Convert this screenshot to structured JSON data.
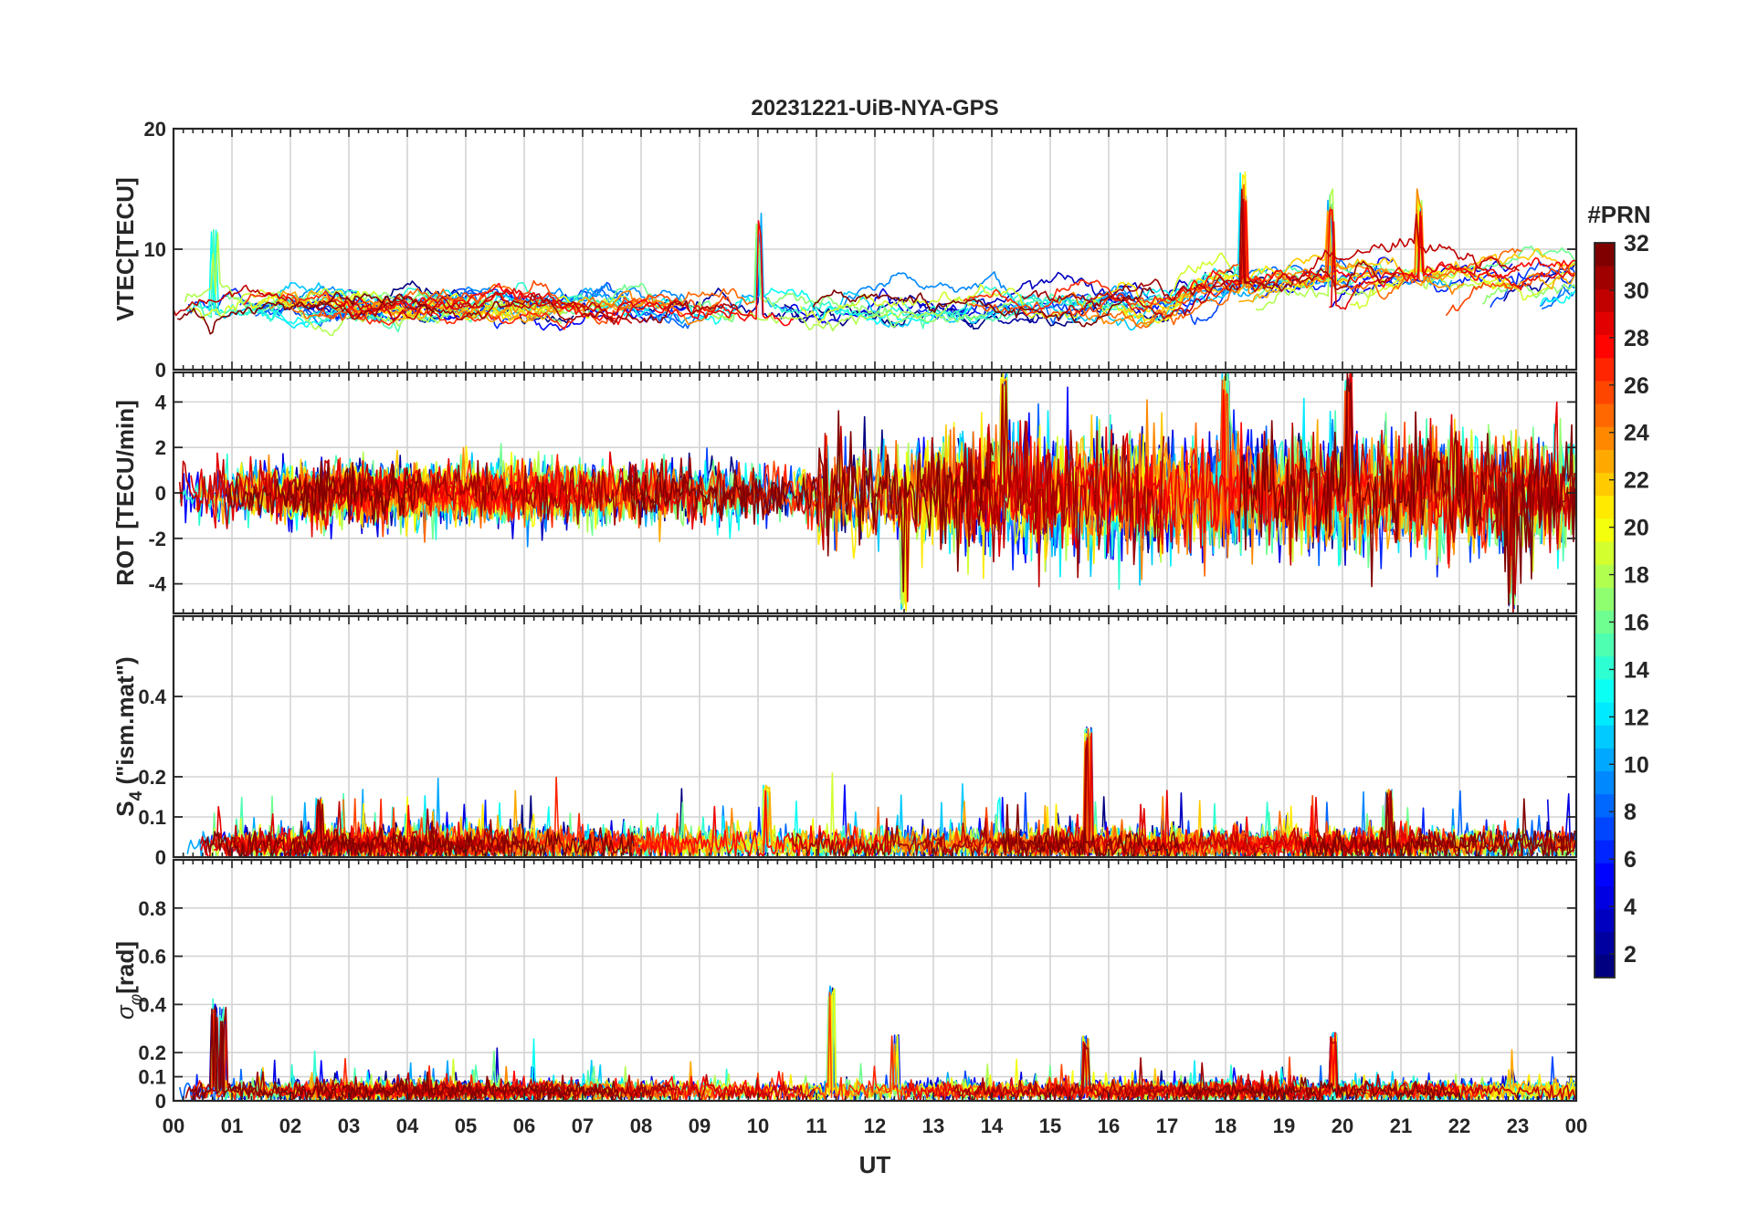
{
  "chart_data": {
    "type": "line",
    "title": "20231221-UiB-NYA-GPS",
    "xlabel": "UT",
    "x_range_hours": [
      0,
      24
    ],
    "x_tick_labels": [
      "00",
      "01",
      "02",
      "03",
      "04",
      "05",
      "06",
      "07",
      "08",
      "09",
      "10",
      "11",
      "12",
      "13",
      "14",
      "15",
      "16",
      "17",
      "18",
      "19",
      "20",
      "21",
      "22",
      "23",
      "00"
    ],
    "colorbar": {
      "label": "#PRN",
      "range": [
        1,
        32
      ],
      "tick_labels": [
        "2",
        "4",
        "6",
        "8",
        "10",
        "12",
        "14",
        "16",
        "18",
        "20",
        "22",
        "24",
        "26",
        "28",
        "30",
        "32"
      ],
      "colormap": "jet"
    },
    "panels": [
      {
        "id": "vtec",
        "ylabel": "VTEC[TECU]",
        "ylim": [
          0,
          20
        ],
        "yticks": [
          0,
          10,
          20
        ],
        "ytick_labels": [
          "0",
          "10",
          "20"
        ],
        "baseline": 5.2,
        "noise": 1.2,
        "typical_range": [
          2,
          16
        ],
        "features": [
          {
            "hour": 0.7,
            "value": 12
          },
          {
            "hour": 10.0,
            "value": 13
          },
          {
            "hour": 18.3,
            "value": 16.5
          },
          {
            "hour": 19.8,
            "value": 15
          },
          {
            "hour": 21.3,
            "value": 15
          }
        ]
      },
      {
        "id": "rot",
        "ylabel": "ROT [TECU/min]",
        "ylim": [
          -5.3,
          5.3
        ],
        "yticks": [
          -4,
          -2,
          0,
          2,
          4
        ],
        "ytick_labels": [
          "-4",
          "-2",
          "0",
          "2",
          "4"
        ],
        "baseline": 0,
        "noise": 1.0,
        "typical_range": [
          -5,
          5
        ],
        "features": [
          {
            "hour": 12.5,
            "value": -5.3
          },
          {
            "hour": 14.2,
            "value": 5.3
          },
          {
            "hour": 18.0,
            "value": 5.3
          },
          {
            "hour": 20.1,
            "value": 5.3
          },
          {
            "hour": 22.9,
            "value": -5.3
          }
        ]
      },
      {
        "id": "s4",
        "ylabel_main": "S",
        "ylabel_sub": "4",
        "ylabel_rest": " (\"ism.mat\")",
        "ylim": [
          0,
          0.6
        ],
        "yticks": [
          0,
          0.1,
          0.2,
          0.4
        ],
        "ytick_labels": [
          "0",
          "0.1",
          "0.2",
          "0.4"
        ],
        "baseline": 0.03,
        "noise": 0.02,
        "typical_range": [
          0,
          0.18
        ],
        "features": [
          {
            "hour": 15.65,
            "value": 0.33
          },
          {
            "hour": 10.15,
            "value": 0.18
          },
          {
            "hour": 20.8,
            "value": 0.17
          },
          {
            "hour": 2.5,
            "value": 0.15
          }
        ]
      },
      {
        "id": "sigma_phi",
        "ylabel_main": "σ",
        "ylabel_sub": "φ",
        "ylabel_rest": "[rad]",
        "ylim": [
          0,
          1.0
        ],
        "yticks": [
          0,
          0.1,
          0.2,
          0.4,
          0.6,
          0.8
        ],
        "ytick_labels": [
          "0",
          "0.1",
          "0.2",
          "0.4",
          "0.6",
          "0.8"
        ],
        "baseline": 0.04,
        "noise": 0.02,
        "typical_range": [
          0,
          0.3
        ],
        "features": [
          {
            "hour": 0.7,
            "value": 0.43
          },
          {
            "hour": 0.85,
            "value": 0.39
          },
          {
            "hour": 11.25,
            "value": 0.48
          },
          {
            "hour": 19.85,
            "value": 0.29
          },
          {
            "hour": 12.35,
            "value": 0.28
          },
          {
            "hour": 15.6,
            "value": 0.27
          }
        ]
      }
    ],
    "series_count": 32,
    "series_names": [
      "PRN 1",
      "PRN 2",
      "PRN 3",
      "PRN 4",
      "PRN 5",
      "PRN 6",
      "PRN 7",
      "PRN 8",
      "PRN 9",
      "PRN 10",
      "PRN 11",
      "PRN 12",
      "PRN 13",
      "PRN 14",
      "PRN 15",
      "PRN 16",
      "PRN 17",
      "PRN 18",
      "PRN 19",
      "PRN 20",
      "PRN 21",
      "PRN 22",
      "PRN 23",
      "PRN 24",
      "PRN 25",
      "PRN 26",
      "PRN 27",
      "PRN 28",
      "PRN 29",
      "PRN 30",
      "PRN 31",
      "PRN 32"
    ]
  }
}
